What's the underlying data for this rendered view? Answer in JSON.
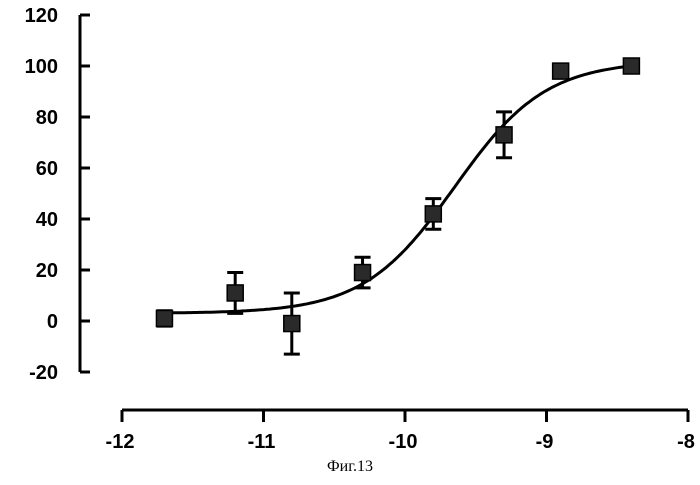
{
  "chart_data": {
    "type": "scatter",
    "xlim": [
      -12,
      -8
    ],
    "ylim": [
      -20,
      120
    ],
    "xticks": [
      "-12",
      "-11",
      "-10",
      "-9",
      "-8"
    ],
    "yticks": [
      "120",
      "100",
      "80",
      "60",
      "40",
      "20",
      "0",
      "-20"
    ],
    "grid": false,
    "series": [
      {
        "points": [
          {
            "x": -11.7,
            "y": 1,
            "err": 3
          },
          {
            "x": -11.2,
            "y": 11,
            "err": 8
          },
          {
            "x": -10.8,
            "y": -1,
            "err": 12
          },
          {
            "x": -10.3,
            "y": 19,
            "err": 6
          },
          {
            "x": -9.8,
            "y": 42,
            "err": 6
          },
          {
            "x": -9.3,
            "y": 73,
            "err": 9
          },
          {
            "x": -8.9,
            "y": 98,
            "err": 2
          },
          {
            "x": -8.4,
            "y": 100,
            "err": 2
          }
        ],
        "fit": {
          "bottom": 3,
          "top": 102,
          "logEC50": -9.65,
          "hill": 1.35
        }
      }
    ]
  },
  "caption": "Фиг.13"
}
